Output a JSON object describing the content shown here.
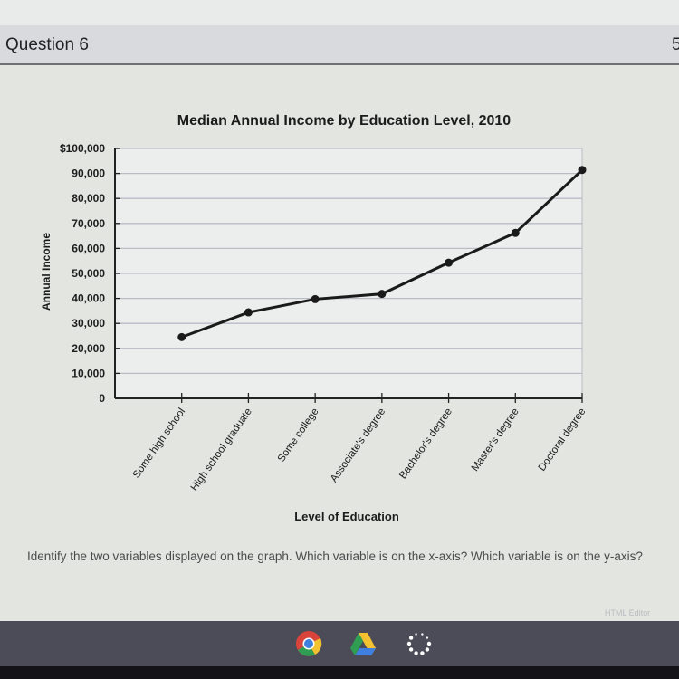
{
  "header": {
    "title": "Question 6",
    "points_partial": "5"
  },
  "question": {
    "text": "Identify the two variables displayed on the graph. Which variable is on the x-axis? Which variable is on the y-axis?"
  },
  "editor_label": "HTML Editor",
  "taskbar": {
    "icons": [
      "chrome-icon",
      "google-drive-icon",
      "loading-spinner-icon"
    ]
  },
  "chart_data": {
    "type": "line",
    "title": "Median Annual Income by Education Level, 2010",
    "xlabel": "Level of Education",
    "ylabel": "Annual Income",
    "ylim": [
      0,
      100000
    ],
    "yticks": [
      0,
      10000,
      20000,
      30000,
      40000,
      50000,
      60000,
      70000,
      80000,
      90000,
      100000
    ],
    "ytick_labels": [
      "0",
      "10,000",
      "20,000",
      "30,000",
      "40,000",
      "50,000",
      "60,000",
      "70,000",
      "80,000",
      "90,000",
      "$100,000"
    ],
    "grid": true,
    "categories": [
      "Some high school",
      "High school graduate",
      "Some college",
      "Associate's degree",
      "Bachelor's degree",
      "Master's degree",
      "Doctoral degree"
    ],
    "values": [
      24500,
      34400,
      39700,
      41800,
      54300,
      66200,
      91400
    ],
    "colors": {
      "line": "#1a1a1a",
      "grid": "#b9bcc4"
    }
  }
}
